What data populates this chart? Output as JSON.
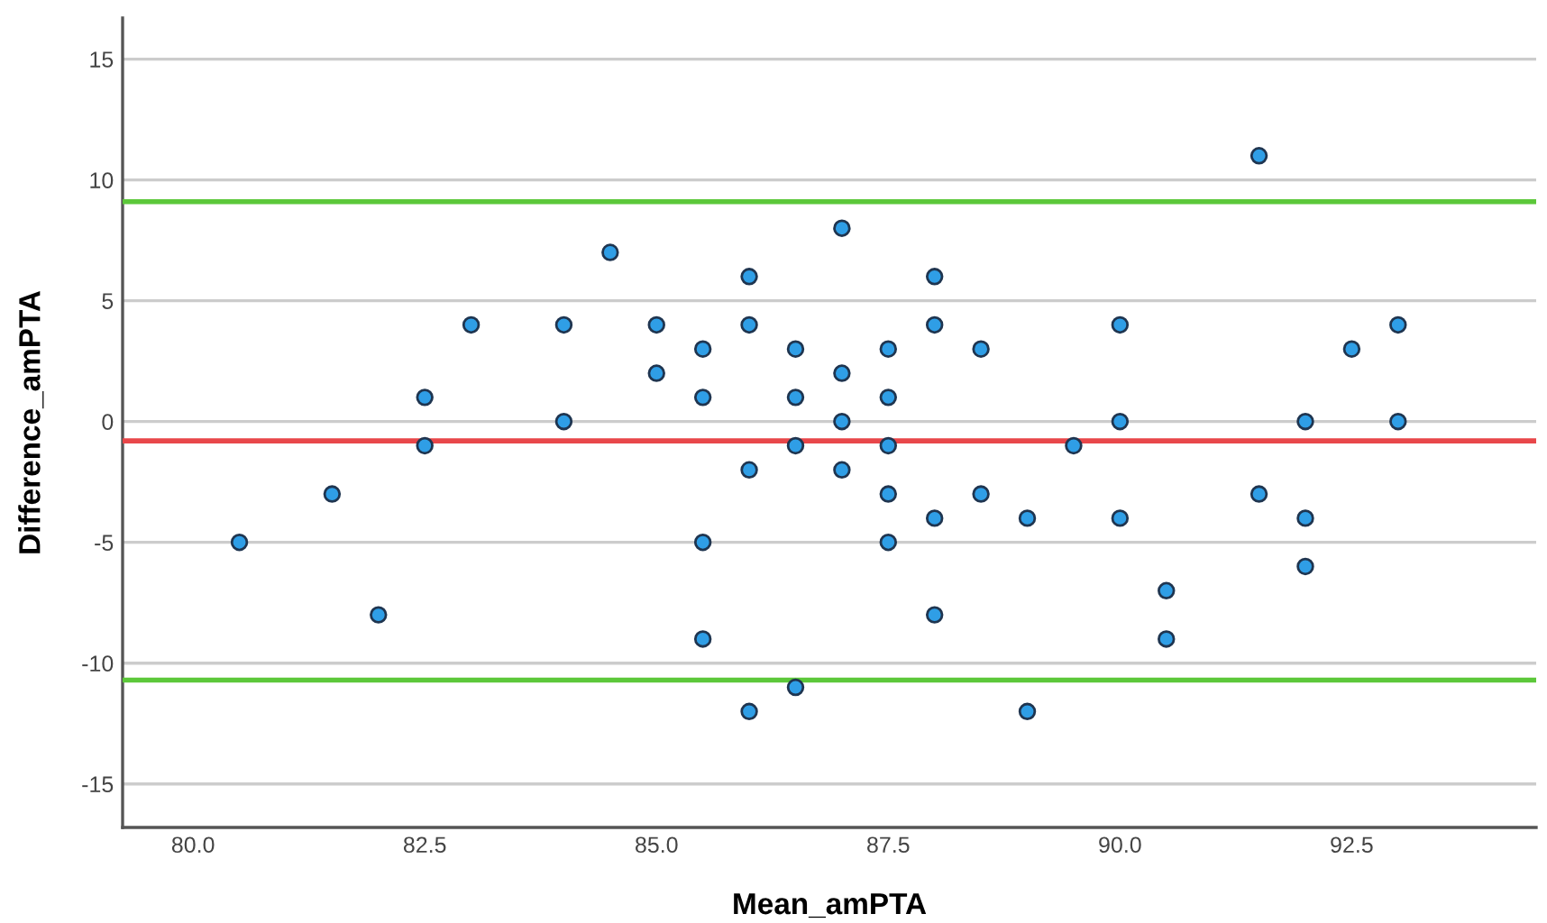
{
  "chart_data": {
    "type": "scatter",
    "xlabel": "Mean_amPTA",
    "ylabel": "Difference_amPTA",
    "x": [
      80.5,
      81.5,
      82,
      82.5,
      82.5,
      83,
      84,
      84,
      84.5,
      85,
      85,
      85.5,
      85.5,
      85.5,
      85.5,
      86,
      86,
      86,
      86,
      86.5,
      86.5,
      86.5,
      86.5,
      87,
      87,
      87,
      87,
      87.5,
      87.5,
      87.5,
      87.5,
      87.5,
      88,
      88,
      88,
      88,
      88.5,
      88.5,
      89,
      89,
      89.5,
      90,
      90,
      90,
      90.5,
      90.5,
      91.5,
      91.5,
      92,
      92,
      92,
      92.5,
      93,
      93
    ],
    "series": [
      {
        "color": "#2f9ee6",
        "values": [
          -5,
          -3,
          -8,
          1,
          -1,
          4,
          4,
          0,
          7,
          4,
          2,
          3,
          1,
          -5,
          -9,
          6,
          4,
          -2,
          -12,
          3,
          1,
          -1,
          -11,
          8,
          2,
          0,
          -2,
          3,
          1,
          -1,
          -3,
          -5,
          6,
          4,
          -4,
          -8,
          3,
          -3,
          -4,
          -12,
          -1,
          4,
          0,
          -4,
          -7,
          -9,
          11,
          -3,
          0,
          -4,
          -6,
          3,
          4,
          0
        ]
      }
    ],
    "marker": "circle",
    "xlim": [
      79.24,
      94.49
    ],
    "xticks": [
      {
        "value": 80,
        "label": "80.0"
      },
      {
        "value": 82.5,
        "label": "82.5"
      },
      {
        "value": 85,
        "label": "85.0"
      },
      {
        "value": 87.5,
        "label": "87.5"
      },
      {
        "value": 90,
        "label": "90.0"
      },
      {
        "value": 92.5,
        "label": "92.5"
      }
    ],
    "ylim": [
      -16.8,
      16.7
    ],
    "yticks": [
      -15,
      -10,
      -5,
      0,
      5,
      10,
      15
    ],
    "grid": "y",
    "ref_lines": [
      {
        "axis": "y",
        "value": 9.1,
        "color": "#5cc83a"
      },
      {
        "axis": "y",
        "value": -0.8,
        "color": "#e8474a"
      },
      {
        "axis": "y",
        "value": -10.7,
        "color": "#5cc83a"
      }
    ]
  }
}
